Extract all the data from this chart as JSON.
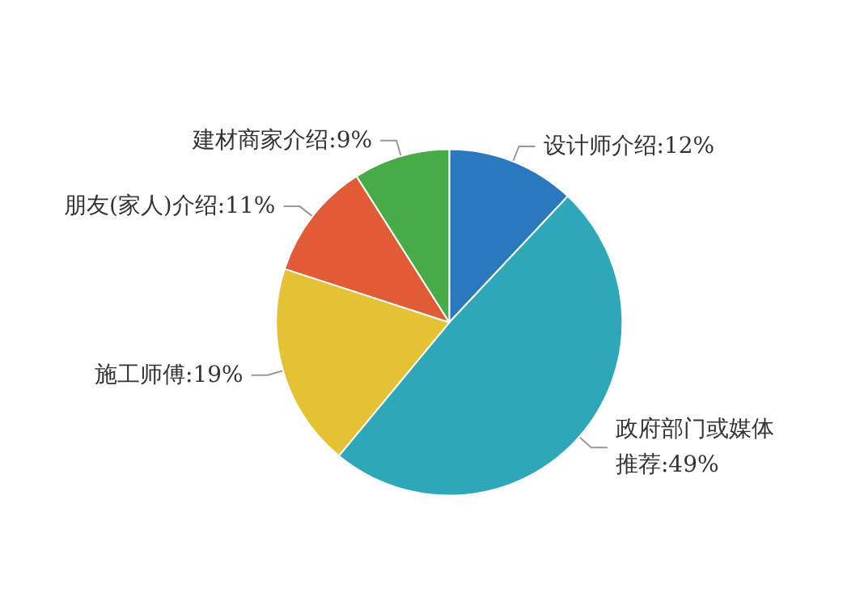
{
  "chart_data": {
    "type": "pie",
    "categories": [
      "设计师介绍",
      "政府部门或媒体推荐",
      "施工师傅",
      "朋友(家人)介绍",
      "建材商家介绍"
    ],
    "values": [
      12,
      49,
      19,
      11,
      9
    ],
    "value_labels": [
      "12%",
      "49%",
      "19%",
      "11%",
      "9%"
    ],
    "colors": [
      "#2a78bd",
      "#2ea8b9",
      "#e5c233",
      "#e15b36",
      "#47ac48"
    ]
  }
}
